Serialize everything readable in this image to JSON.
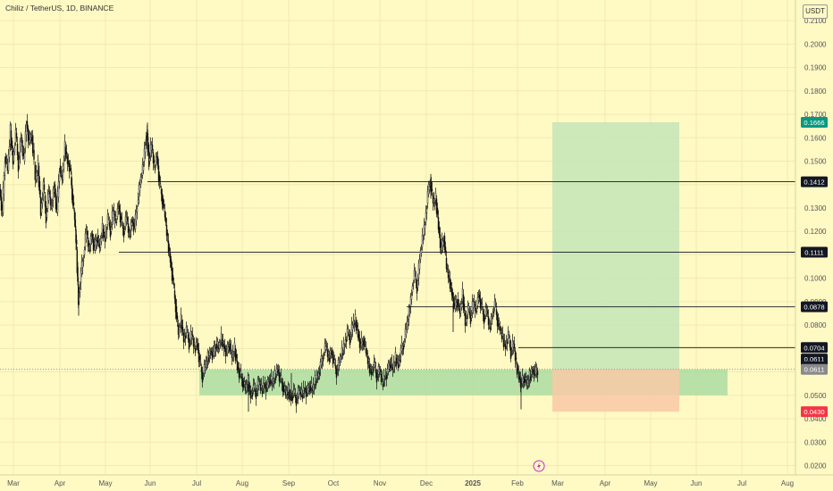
{
  "chart_data": {
    "type": "candlestick",
    "title": "Chiliz / TetherUS, 1D, BINANCE",
    "currency": "USDT",
    "y_ticks": [
      "0.2100",
      "0.2000",
      "0.1900",
      "0.1800",
      "0.1700",
      "0.1600",
      "0.1500",
      "0.1400",
      "0.1300",
      "0.1200",
      "0.1100",
      "0.1000",
      "0.0900",
      "0.0800",
      "0.0700",
      "0.0600",
      "0.0500",
      "0.0400",
      "0.0300",
      "0.0200"
    ],
    "ylim": [
      0.016,
      0.215
    ],
    "x_ticks": [
      "Mar",
      "Apr",
      "May",
      "Jun",
      "Jul",
      "Aug",
      "Sep",
      "Oct",
      "Nov",
      "Dec",
      "2025",
      "Feb",
      "Mar",
      "Apr",
      "May",
      "Jun",
      "Jul",
      "Aug"
    ],
    "series_path": [
      [
        0,
        0.138
      ],
      [
        3,
        0.128
      ],
      [
        6,
        0.152
      ],
      [
        9,
        0.146
      ],
      [
        12,
        0.163
      ],
      [
        15,
        0.15
      ],
      [
        18,
        0.162
      ],
      [
        21,
        0.148
      ],
      [
        24,
        0.16
      ],
      [
        27,
        0.15
      ],
      [
        30,
        0.167
      ],
      [
        33,
        0.158
      ],
      [
        36,
        0.161
      ],
      [
        40,
        0.142
      ],
      [
        43,
        0.148
      ],
      [
        46,
        0.128
      ],
      [
        49,
        0.14
      ],
      [
        52,
        0.126
      ],
      [
        55,
        0.137
      ],
      [
        58,
        0.13
      ],
      [
        61,
        0.14
      ],
      [
        64,
        0.128
      ],
      [
        67,
        0.148
      ],
      [
        70,
        0.142
      ],
      [
        73,
        0.156
      ],
      [
        76,
        0.15
      ],
      [
        79,
        0.147
      ],
      [
        81,
        0.136
      ],
      [
        84,
        0.125
      ],
      [
        86,
        0.112
      ],
      [
        88,
        0.09
      ],
      [
        91,
        0.102
      ],
      [
        94,
        0.11
      ],
      [
        97,
        0.12
      ],
      [
        100,
        0.112
      ],
      [
        103,
        0.119
      ],
      [
        106,
        0.112
      ],
      [
        109,
        0.118
      ],
      [
        112,
        0.113
      ],
      [
        115,
        0.121
      ],
      [
        118,
        0.117
      ],
      [
        121,
        0.126
      ],
      [
        124,
        0.12
      ],
      [
        127,
        0.129
      ],
      [
        130,
        0.124
      ],
      [
        133,
        0.131
      ],
      [
        136,
        0.124
      ],
      [
        139,
        0.12
      ],
      [
        142,
        0.126
      ],
      [
        145,
        0.118
      ],
      [
        148,
        0.125
      ],
      [
        151,
        0.121
      ],
      [
        154,
        0.132
      ],
      [
        157,
        0.14
      ],
      [
        160,
        0.146
      ],
      [
        163,
        0.158
      ],
      [
        165,
        0.162
      ],
      [
        167,
        0.15
      ],
      [
        170,
        0.157
      ],
      [
        173,
        0.147
      ],
      [
        176,
        0.152
      ],
      [
        179,
        0.14
      ],
      [
        182,
        0.134
      ],
      [
        185,
        0.126
      ],
      [
        188,
        0.116
      ],
      [
        191,
        0.108
      ],
      [
        194,
        0.098
      ],
      [
        197,
        0.088
      ],
      [
        200,
        0.076
      ],
      [
        203,
        0.082
      ],
      [
        206,
        0.074
      ],
      [
        209,
        0.078
      ],
      [
        212,
        0.072
      ],
      [
        215,
        0.076
      ],
      [
        218,
        0.07
      ],
      [
        221,
        0.072
      ],
      [
        224,
        0.064
      ],
      [
        227,
        0.058
      ],
      [
        230,
        0.062
      ],
      [
        233,
        0.066
      ],
      [
        236,
        0.069
      ],
      [
        239,
        0.067
      ],
      [
        242,
        0.072
      ],
      [
        245,
        0.07
      ],
      [
        248,
        0.074
      ],
      [
        251,
        0.071
      ],
      [
        254,
        0.068
      ],
      [
        257,
        0.072
      ],
      [
        260,
        0.066
      ],
      [
        263,
        0.07
      ],
      [
        266,
        0.062
      ],
      [
        269,
        0.059
      ],
      [
        272,
        0.056
      ],
      [
        275,
        0.052
      ],
      [
        278,
        0.056
      ],
      [
        281,
        0.05
      ],
      [
        284,
        0.053
      ],
      [
        287,
        0.051
      ],
      [
        290,
        0.056
      ],
      [
        293,
        0.052
      ],
      [
        296,
        0.055
      ],
      [
        299,
        0.053
      ],
      [
        302,
        0.057
      ],
      [
        305,
        0.055
      ],
      [
        308,
        0.058
      ],
      [
        311,
        0.061
      ],
      [
        314,
        0.057
      ],
      [
        317,
        0.054
      ],
      [
        320,
        0.05
      ],
      [
        323,
        0.052
      ],
      [
        326,
        0.049
      ],
      [
        329,
        0.051
      ],
      [
        332,
        0.048
      ],
      [
        335,
        0.052
      ],
      [
        338,
        0.05
      ],
      [
        341,
        0.053
      ],
      [
        344,
        0.051
      ],
      [
        347,
        0.054
      ],
      [
        350,
        0.052
      ],
      [
        353,
        0.056
      ],
      [
        356,
        0.058
      ],
      [
        359,
        0.063
      ],
      [
        362,
        0.067
      ],
      [
        365,
        0.071
      ],
      [
        368,
        0.066
      ],
      [
        371,
        0.069
      ],
      [
        374,
        0.064
      ],
      [
        377,
        0.06
      ],
      [
        380,
        0.064
      ],
      [
        383,
        0.068
      ],
      [
        386,
        0.072
      ],
      [
        389,
        0.077
      ],
      [
        392,
        0.074
      ],
      [
        395,
        0.08
      ],
      [
        398,
        0.082
      ],
      [
        401,
        0.076
      ],
      [
        404,
        0.071
      ],
      [
        407,
        0.074
      ],
      [
        410,
        0.068
      ],
      [
        413,
        0.063
      ],
      [
        416,
        0.06
      ],
      [
        419,
        0.063
      ],
      [
        422,
        0.058
      ],
      [
        425,
        0.061
      ],
      [
        428,
        0.055
      ],
      [
        431,
        0.058
      ],
      [
        434,
        0.06
      ],
      [
        437,
        0.064
      ],
      [
        440,
        0.061
      ],
      [
        443,
        0.066
      ],
      [
        446,
        0.063
      ],
      [
        449,
        0.069
      ],
      [
        452,
        0.072
      ],
      [
        455,
        0.078
      ],
      [
        458,
        0.085
      ],
      [
        461,
        0.094
      ],
      [
        464,
        0.102
      ],
      [
        467,
        0.096
      ],
      [
        470,
        0.108
      ],
      [
        473,
        0.116
      ],
      [
        476,
        0.124
      ],
      [
        479,
        0.136
      ],
      [
        482,
        0.141
      ],
      [
        485,
        0.132
      ],
      [
        488,
        0.134
      ],
      [
        491,
        0.122
      ],
      [
        494,
        0.112
      ],
      [
        497,
        0.118
      ],
      [
        500,
        0.104
      ],
      [
        503,
        0.1
      ],
      [
        506,
        0.094
      ],
      [
        509,
        0.087
      ],
      [
        512,
        0.091
      ],
      [
        515,
        0.085
      ],
      [
        518,
        0.093
      ],
      [
        521,
        0.081
      ],
      [
        524,
        0.087
      ],
      [
        527,
        0.083
      ],
      [
        530,
        0.09
      ],
      [
        533,
        0.086
      ],
      [
        536,
        0.093
      ],
      [
        539,
        0.088
      ],
      [
        542,
        0.083
      ],
      [
        545,
        0.086
      ],
      [
        548,
        0.079
      ],
      [
        551,
        0.084
      ],
      [
        554,
        0.089
      ],
      [
        557,
        0.082
      ],
      [
        560,
        0.078
      ],
      [
        563,
        0.074
      ],
      [
        566,
        0.071
      ],
      [
        569,
        0.076
      ],
      [
        572,
        0.068
      ],
      [
        575,
        0.072
      ],
      [
        578,
        0.063
      ],
      [
        581,
        0.058
      ],
      [
        584,
        0.055
      ],
      [
        587,
        0.058
      ],
      [
        590,
        0.054
      ],
      [
        593,
        0.058
      ],
      [
        596,
        0.061
      ],
      [
        599,
        0.059
      ],
      [
        602,
        0.0611
      ]
    ],
    "horizontal_levels": [
      {
        "price": 0.1412,
        "label": "0.1412",
        "x_start": 165
      },
      {
        "price": 0.1111,
        "label": "0.1111",
        "x_start": 133
      },
      {
        "price": 0.0878,
        "label": "0.0878",
        "x_start": 455
      },
      {
        "price": 0.0704,
        "label": "0.0704",
        "x_start": 580
      }
    ],
    "price_labels": [
      {
        "label": "0.1666",
        "price": 0.1666,
        "bg": "#089981",
        "color": "#ffffff"
      },
      {
        "label": "0.1412",
        "price": 0.1412,
        "bg": "#131722",
        "color": "#ffffff"
      },
      {
        "label": "0.1111",
        "price": 0.1111,
        "bg": "#131722",
        "color": "#ffffff"
      },
      {
        "label": "0.0878",
        "price": 0.0878,
        "bg": "#131722",
        "color": "#ffffff"
      },
      {
        "label": "0.0704",
        "price": 0.0704,
        "bg": "#131722",
        "color": "#ffffff"
      },
      {
        "label": "0.0611",
        "price": 0.0655,
        "bg": "#131722",
        "color": "#ffffff"
      },
      {
        "label": "18:26:48",
        "price": 0.0622,
        "bg": "#131722",
        "color": "#ffffff"
      },
      {
        "label": "0.0611",
        "price": 0.0611,
        "bg": "#8a8a8a",
        "color": "#ffffff"
      },
      {
        "label": "0.0430",
        "price": 0.043,
        "bg": "#f23645",
        "color": "#ffffff"
      }
    ],
    "current_price": 0.0611,
    "support_zone": {
      "x_start": 223,
      "x_end": 814,
      "top": 0.061,
      "bottom": 0.05,
      "color": "#a8dba0"
    },
    "position": {
      "x_start": 618,
      "x_end": 760,
      "entry": 0.0611,
      "target": 0.1666,
      "stop": 0.043,
      "target_color": "#c8e6b8",
      "stop_color": "#f8c9a6"
    },
    "colors": {
      "background": "#fff9c4",
      "candles": "#111111",
      "grid": "#f0eab0",
      "axis_text": "#555555"
    }
  }
}
